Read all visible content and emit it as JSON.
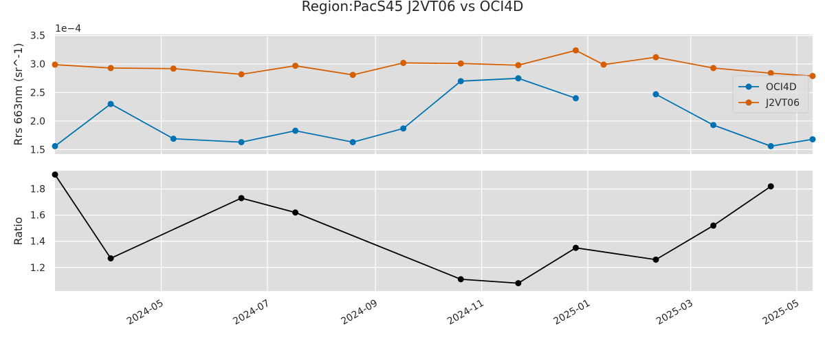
{
  "chart_data": [
    {
      "type": "line",
      "title": "Region:PacS45 J2VT06 vs OCI4D",
      "ylabel": "Rrs 663nm (sr^-1)",
      "y_scale_label": "1e−4",
      "ylim": [
        1.42,
        3.52
      ],
      "yticks": [
        1.5,
        2.0,
        2.5,
        3.0,
        3.5
      ],
      "ytick_labels": [
        "1.5",
        "2.0",
        "2.5",
        "3.0",
        "3.5"
      ],
      "xlim": [
        "2024-03-01",
        "2025-05-10"
      ],
      "grid": true,
      "legend_position": "right",
      "series": [
        {
          "name": "OCI4D",
          "color": "#0072B2",
          "points": [
            {
              "x": "2024-03-01",
              "y": 1.56
            },
            {
              "x": "2024-04-02",
              "y": 2.3
            },
            {
              "x": "2024-05-08",
              "y": 1.69
            },
            {
              "x": "2024-06-16",
              "y": 1.63
            },
            {
              "x": "2024-07-17",
              "y": 1.83
            },
            {
              "x": "2024-08-19",
              "y": 1.63
            },
            {
              "x": "2024-09-17",
              "y": 1.87
            },
            {
              "x": "2024-10-20",
              "y": 2.7
            },
            {
              "x": "2024-11-22",
              "y": 2.75
            },
            {
              "x": "2024-12-25",
              "y": 2.4
            },
            {
              "x": "2025-01-10",
              "y": null
            },
            {
              "x": "2025-02-09",
              "y": 2.47
            },
            {
              "x": "2025-03-14",
              "y": 1.93
            },
            {
              "x": "2025-04-16",
              "y": 1.56
            },
            {
              "x": "2025-05-10",
              "y": 1.68
            }
          ]
        },
        {
          "name": "J2VT06",
          "color": "#D55E00",
          "points": [
            {
              "x": "2024-03-01",
              "y": 2.99
            },
            {
              "x": "2024-04-02",
              "y": 2.93
            },
            {
              "x": "2024-05-08",
              "y": 2.92
            },
            {
              "x": "2024-06-16",
              "y": 2.82
            },
            {
              "x": "2024-07-17",
              "y": 2.97
            },
            {
              "x": "2024-08-19",
              "y": 2.81
            },
            {
              "x": "2024-09-17",
              "y": 3.02
            },
            {
              "x": "2024-10-20",
              "y": 3.01
            },
            {
              "x": "2024-11-22",
              "y": 2.98
            },
            {
              "x": "2024-12-25",
              "y": 3.24
            },
            {
              "x": "2025-01-10",
              "y": 2.99
            },
            {
              "x": "2025-02-09",
              "y": 3.12
            },
            {
              "x": "2025-03-14",
              "y": 2.93
            },
            {
              "x": "2025-04-16",
              "y": 2.84
            },
            {
              "x": "2025-05-10",
              "y": 2.79
            }
          ]
        }
      ]
    },
    {
      "type": "line",
      "ylabel": "Ratio",
      "ylim": [
        1.02,
        1.94
      ],
      "yticks": [
        1.2,
        1.4,
        1.6,
        1.8
      ],
      "ytick_labels": [
        "1.2",
        "1.4",
        "1.6",
        "1.8"
      ],
      "xlim": [
        "2024-03-01",
        "2025-05-10"
      ],
      "grid": true,
      "xticks": [
        "2024-05-01",
        "2024-07-01",
        "2024-09-01",
        "2024-11-01",
        "2025-01-01",
        "2025-03-01",
        "2025-05-01"
      ],
      "xtick_labels": [
        "2024-05",
        "2024-07",
        "2024-09",
        "2024-11",
        "2025-01",
        "2025-03",
        "2025-05"
      ],
      "series": [
        {
          "color": "#000000",
          "points": [
            {
              "x": "2024-03-01",
              "y": 1.91
            },
            {
              "x": "2024-04-02",
              "y": 1.27
            },
            {
              "x": "2024-06-16",
              "y": 1.73
            },
            {
              "x": "2024-07-17",
              "y": 1.62
            },
            {
              "x": "2024-10-20",
              "y": 1.11
            },
            {
              "x": "2024-11-22",
              "y": 1.08
            },
            {
              "x": "2024-12-25",
              "y": 1.35
            },
            {
              "x": "2025-02-09",
              "y": 1.26
            },
            {
              "x": "2025-03-14",
              "y": 1.52
            },
            {
              "x": "2025-04-16",
              "y": 1.82
            }
          ]
        }
      ]
    }
  ]
}
